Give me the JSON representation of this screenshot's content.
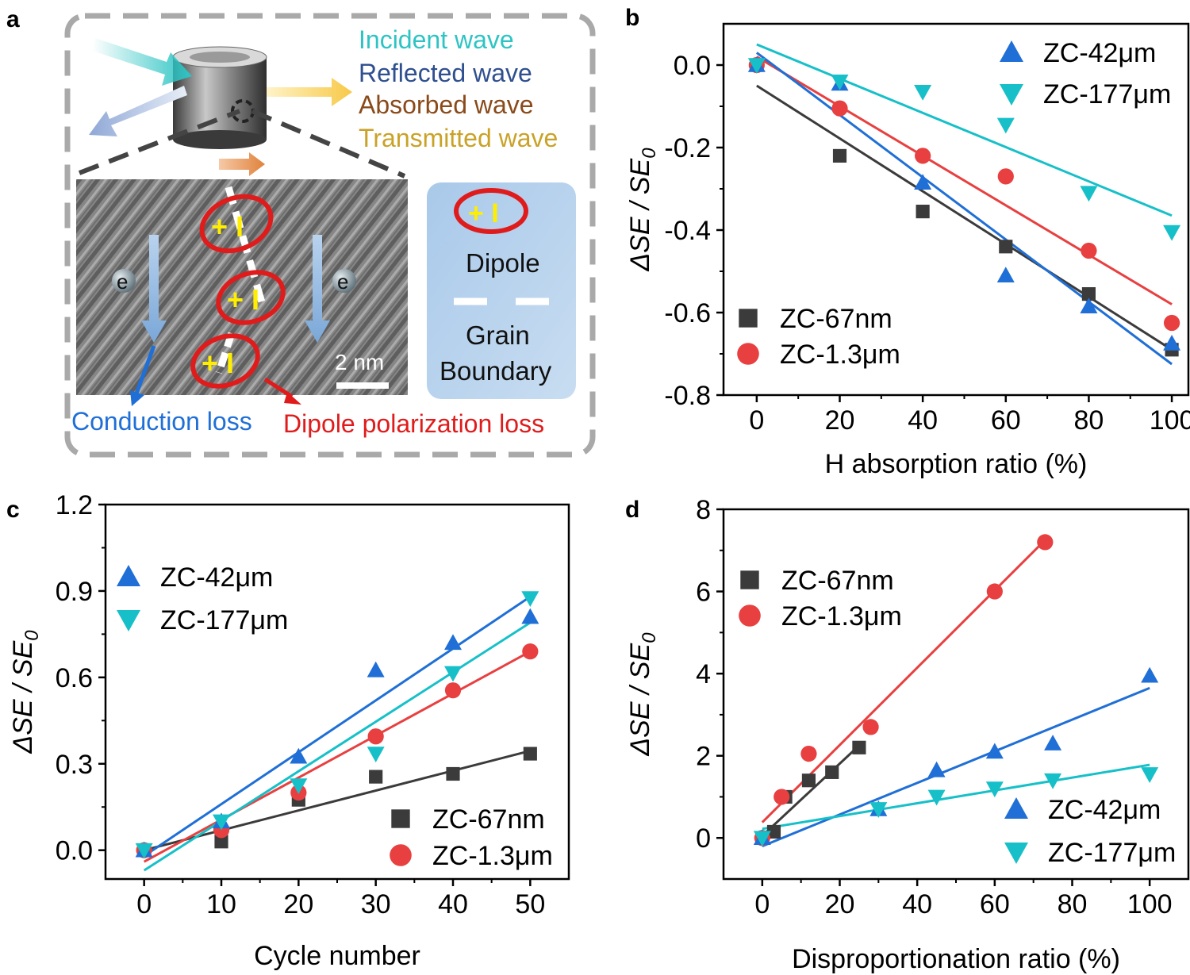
{
  "panel_labels": {
    "a": "a",
    "b": "b",
    "c": "c",
    "d": "d"
  },
  "schematic": {
    "incident": "Incident wave",
    "reflected": "Reflected wave",
    "absorbed": "Absorbed wave",
    "transmitted": "Transmitted wave",
    "electron": "e",
    "scale_bar": "2 nm",
    "legend_dipole": "Dipole",
    "legend_grain_1": "Grain",
    "legend_grain_2": "Boundary",
    "conduction_loss": "Conduction loss",
    "dipole_loss": "Dipole polarization loss",
    "dipole_signs": "+ I",
    "colors": {
      "incident": "#2ec4c4",
      "reflected": "#2f4f8f",
      "absorbed": "#8a4a1a",
      "transmitted": "#c9a227",
      "conduction": "#1f6fd6",
      "dipole": "#e01b1b"
    }
  },
  "chart_data": [
    {
      "panel": "b",
      "type": "scatter",
      "xlabel": "H absorption ratio (%)",
      "ylabel": "ΔSE / SE0",
      "xlim": [
        -8,
        104
      ],
      "ylim": [
        -0.8,
        0.1
      ],
      "xticks": [
        0,
        20,
        40,
        60,
        80,
        100
      ],
      "yticks": [
        -0.8,
        -0.6,
        -0.4,
        -0.2,
        0.0
      ],
      "ytick_labels": [
        "-0.8",
        "-0.6",
        "-0.4",
        "-0.2",
        "0.0"
      ],
      "legend": "split: ZC-42μm, ZC-177μm top-right; ZC-67nm, ZC-1.3μm bottom-left",
      "series": [
        {
          "name": "ZC-67nm",
          "marker": "square",
          "color": "#3b3b3b",
          "x": [
            0,
            20,
            40,
            60,
            80,
            100
          ],
          "y": [
            0.0,
            -0.22,
            -0.355,
            -0.44,
            -0.555,
            -0.69
          ],
          "fit": [
            [
              0,
              -0.05
            ],
            [
              100,
              -0.69
            ]
          ]
        },
        {
          "name": "ZC-1.3μm",
          "marker": "circle",
          "color": "#e84040",
          "x": [
            0,
            20,
            40,
            60,
            80,
            100
          ],
          "y": [
            0.0,
            -0.105,
            -0.22,
            -0.27,
            -0.45,
            -0.625
          ],
          "fit": [
            [
              0,
              0.02
            ],
            [
              100,
              -0.58
            ]
          ]
        },
        {
          "name": "ZC-42μm",
          "marker": "triangle-up",
          "color": "#1f6fd6",
          "x": [
            0,
            20,
            40,
            60,
            80,
            100
          ],
          "y": [
            0.0,
            -0.045,
            -0.285,
            -0.51,
            -0.585,
            -0.675
          ],
          "fit": [
            [
              0,
              0.03
            ],
            [
              100,
              -0.725
            ]
          ]
        },
        {
          "name": "ZC-177μm",
          "marker": "triangle-down",
          "color": "#17c0c8",
          "x": [
            0,
            20,
            40,
            60,
            80,
            100
          ],
          "y": [
            0.0,
            -0.04,
            -0.065,
            -0.145,
            -0.31,
            -0.405
          ],
          "fit": [
            [
              0,
              0.05
            ],
            [
              100,
              -0.365
            ]
          ]
        }
      ]
    },
    {
      "panel": "c",
      "type": "scatter",
      "xlabel": "Cycle number",
      "ylabel": "ΔSE / SE0",
      "xlim": [
        -5,
        55
      ],
      "ylim": [
        -0.1,
        1.2
      ],
      "xticks": [
        0,
        10,
        20,
        30,
        40,
        50
      ],
      "yticks": [
        0.0,
        0.3,
        0.6,
        0.9,
        1.2
      ],
      "ytick_labels": [
        "0.0",
        "0.3",
        "0.6",
        "0.9",
        "1.2"
      ],
      "legend": "split: ZC-42μm, ZC-177μm top-left; ZC-67nm, ZC-1.3μm bottom-right",
      "series": [
        {
          "name": "ZC-67nm",
          "marker": "square",
          "color": "#3b3b3b",
          "x": [
            0,
            10,
            20,
            30,
            40,
            50
          ],
          "y": [
            0.0,
            0.03,
            0.175,
            0.255,
            0.265,
            0.335
          ],
          "fit": [
            [
              0,
              0.0
            ],
            [
              50,
              0.345
            ]
          ]
        },
        {
          "name": "ZC-1.3μm",
          "marker": "circle",
          "color": "#e84040",
          "x": [
            0,
            10,
            20,
            30,
            40,
            50
          ],
          "y": [
            0.0,
            0.07,
            0.2,
            0.395,
            0.555,
            0.69
          ],
          "fit": [
            [
              0,
              -0.04
            ],
            [
              50,
              0.69
            ]
          ]
        },
        {
          "name": "ZC-42μm",
          "marker": "triangle-up",
          "color": "#1f6fd6",
          "x": [
            0,
            10,
            20,
            30,
            40,
            50
          ],
          "y": [
            0.0,
            0.1,
            0.325,
            0.625,
            0.72,
            0.81
          ],
          "fit": [
            [
              0,
              -0.02
            ],
            [
              50,
              0.88
            ]
          ]
        },
        {
          "name": "ZC-177μm",
          "marker": "triangle-down",
          "color": "#17c0c8",
          "x": [
            0,
            10,
            20,
            30,
            40,
            50
          ],
          "y": [
            0.0,
            0.1,
            0.225,
            0.335,
            0.615,
            0.875
          ],
          "fit": [
            [
              0,
              -0.07
            ],
            [
              50,
              0.79
            ]
          ]
        }
      ]
    },
    {
      "panel": "d",
      "type": "scatter",
      "xlabel": "Disproportionation ratio (%)",
      "ylabel": "ΔSE / SE0",
      "xlim": [
        -10,
        110
      ],
      "ylim": [
        -1,
        8
      ],
      "xticks": [
        0,
        20,
        40,
        60,
        80,
        100
      ],
      "yticks": [
        0,
        2,
        4,
        6,
        8
      ],
      "ytick_labels": [
        "0",
        "2",
        "4",
        "6",
        "8"
      ],
      "legend": "split: ZC-67nm, ZC-1.3μm top-left; ZC-42μm, ZC-177μm bottom-right",
      "series": [
        {
          "name": "ZC-67nm",
          "marker": "square",
          "color": "#3b3b3b",
          "x": [
            0,
            3,
            6,
            12,
            18,
            25
          ],
          "y": [
            0.0,
            0.15,
            1.0,
            1.4,
            1.6,
            2.2
          ],
          "fit": [
            [
              0,
              0.05
            ],
            [
              25,
              2.25
            ]
          ]
        },
        {
          "name": "ZC-1.3μm",
          "marker": "circle",
          "color": "#e84040",
          "x": [
            0,
            5,
            12,
            28,
            60,
            73
          ],
          "y": [
            0.0,
            1.0,
            2.05,
            2.7,
            6.0,
            7.2
          ],
          "fit": [
            [
              0,
              0.38
            ],
            [
              73,
              7.25
            ]
          ]
        },
        {
          "name": "ZC-42μm",
          "marker": "triangle-up",
          "color": "#1f6fd6",
          "x": [
            0,
            30,
            45,
            60,
            75,
            100
          ],
          "y": [
            0.0,
            0.7,
            1.65,
            2.1,
            2.3,
            3.95
          ],
          "fit": [
            [
              0,
              -0.2
            ],
            [
              100,
              3.65
            ]
          ]
        },
        {
          "name": "ZC-177μm",
          "marker": "triangle-down",
          "color": "#17c0c8",
          "x": [
            0,
            30,
            45,
            60,
            75,
            100
          ],
          "y": [
            0.0,
            0.7,
            1.0,
            1.2,
            1.4,
            1.55
          ],
          "fit": [
            [
              0,
              0.22
            ],
            [
              100,
              1.78
            ]
          ]
        }
      ]
    }
  ]
}
